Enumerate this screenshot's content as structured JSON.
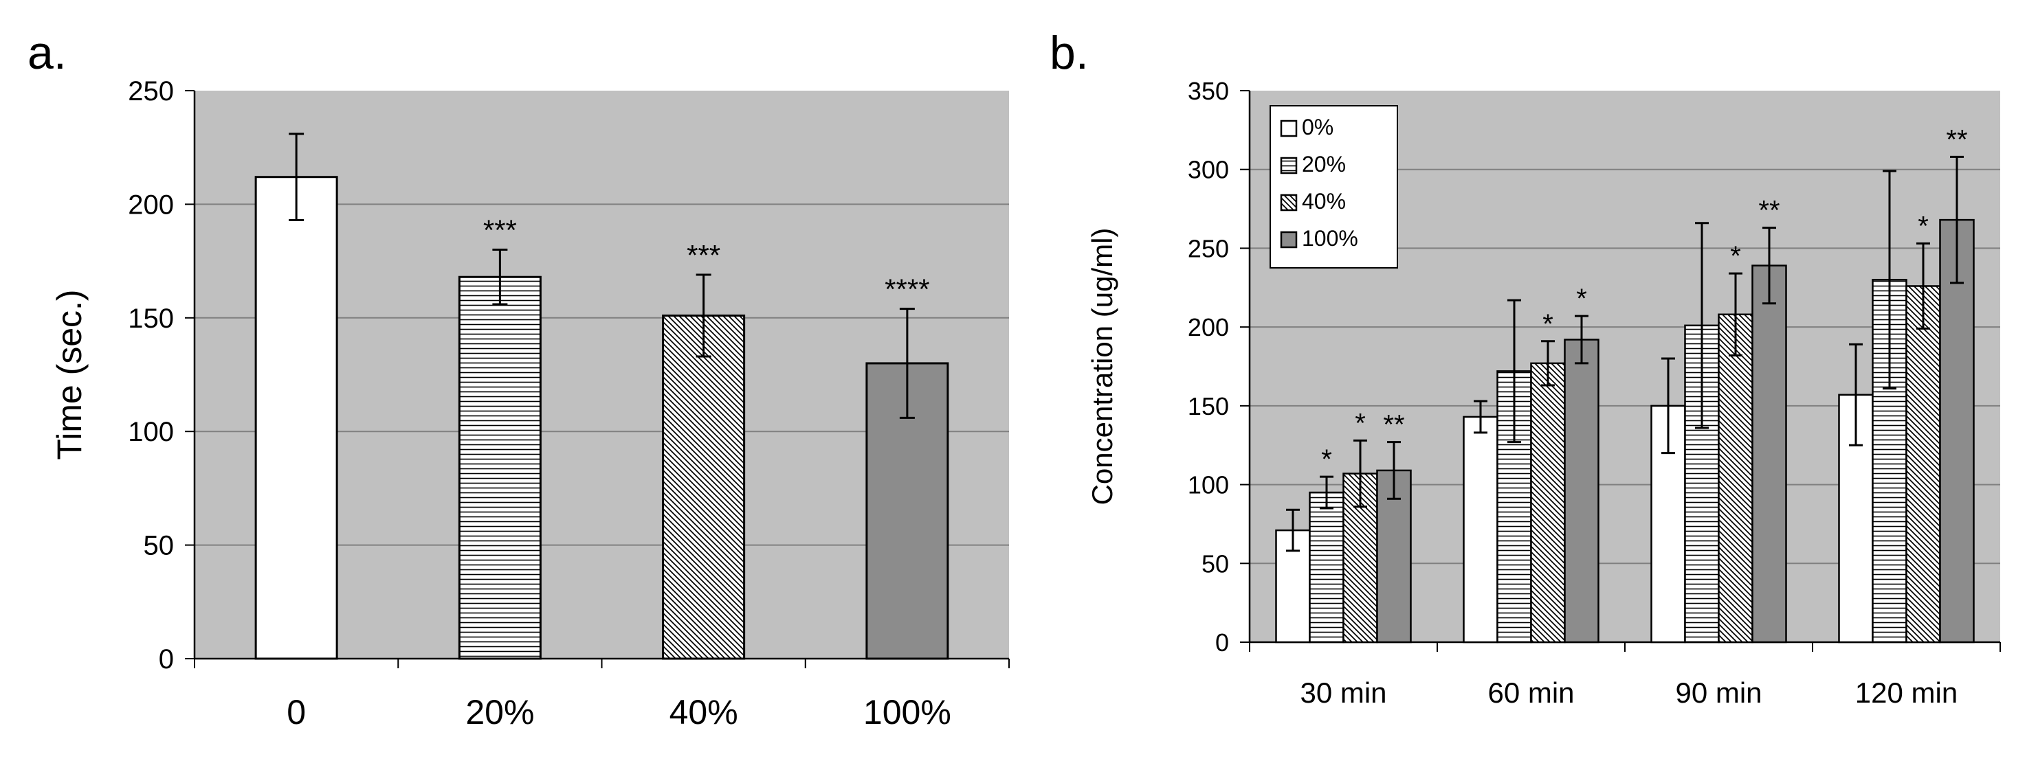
{
  "chart_data": [
    {
      "panel_label": "a.",
      "type": "bar",
      "title": "",
      "xlabel": "",
      "ylabel": "Time (sec.)",
      "ylim": [
        0,
        250
      ],
      "yticks": [
        "0",
        "50",
        "100",
        "150",
        "200",
        "250"
      ],
      "categories": [
        "0",
        "20%",
        "40%",
        "100%"
      ],
      "values": [
        212,
        168,
        151,
        130
      ],
      "errors": [
        19,
        12,
        18,
        24
      ],
      "annotations": [
        "",
        "***",
        "***",
        "****"
      ],
      "patterns": [
        "white",
        "horizontal",
        "diagonal",
        "gray"
      ],
      "grid": true,
      "legend": null
    },
    {
      "panel_label": "b.",
      "type": "bar",
      "title": "",
      "xlabel": "",
      "ylabel": "Concentration (ug/ml)",
      "ylim": [
        0,
        350
      ],
      "yticks": [
        "0",
        "50",
        "100",
        "150",
        "200",
        "250",
        "300",
        "350"
      ],
      "categories": [
        "30 min",
        "60 min",
        "90 min",
        "120 min"
      ],
      "series": [
        {
          "name": "0%",
          "pattern": "white",
          "values": [
            71,
            143,
            150,
            157
          ],
          "errors": [
            13,
            10,
            30,
            32
          ],
          "annotations": [
            "",
            "",
            "",
            ""
          ]
        },
        {
          "name": "20%",
          "pattern": "horizontal",
          "values": [
            95,
            172,
            201,
            230
          ],
          "errors": [
            10,
            45,
            65,
            69
          ],
          "annotations": [
            "*",
            "",
            "",
            ""
          ]
        },
        {
          "name": "40%",
          "pattern": "diagonal",
          "values": [
            107,
            177,
            208,
            226
          ],
          "errors": [
            21,
            14,
            26,
            27
          ],
          "annotations": [
            "*",
            "*",
            "*",
            "*"
          ]
        },
        {
          "name": "100%",
          "pattern": "gray",
          "values": [
            109,
            192,
            239,
            268
          ],
          "errors": [
            18,
            15,
            24,
            40
          ],
          "annotations": [
            "**",
            "*",
            "**",
            "**"
          ]
        }
      ],
      "grid": true,
      "legend": "top-left"
    }
  ]
}
